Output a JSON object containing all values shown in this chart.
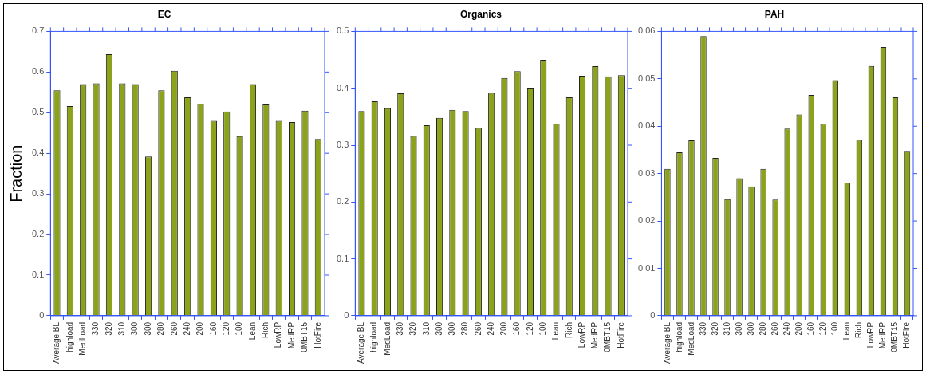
{
  "chart_data": [
    {
      "type": "bar",
      "title": "EC",
      "ylabel": "Fraction",
      "categories": [
        "Average BL",
        "highload",
        "MedLoad",
        "330",
        "320",
        "310",
        "300",
        "300",
        "280",
        "260",
        "240",
        "200",
        "160",
        "120",
        "100",
        "Lean",
        "Rich",
        "LowRP",
        "MedRP",
        "0MBT15",
        "HotFire"
      ],
      "values": [
        0.555,
        0.516,
        0.57,
        0.572,
        0.644,
        0.572,
        0.57,
        0.392,
        0.555,
        0.603,
        0.538,
        0.522,
        0.48,
        0.503,
        0.442,
        0.57,
        0.52,
        0.48,
        0.477,
        0.505,
        0.435
      ],
      "color": "#8aa31b",
      "ylim": [
        0,
        0.7
      ],
      "yticks": [
        0,
        0.1,
        0.2,
        0.3,
        0.4,
        0.5,
        0.6,
        0.7
      ],
      "grid": false
    },
    {
      "type": "bar",
      "title": "Organics",
      "categories": [
        "Average BL",
        "highload",
        "MedLoad",
        "330",
        "320",
        "310",
        "300",
        "300",
        "280",
        "260",
        "240",
        "200",
        "160",
        "120",
        "100",
        "Lean",
        "Rich",
        "LowRP",
        "MedRP",
        "0MBT15",
        "HotFire"
      ],
      "values": [
        0.36,
        0.377,
        0.365,
        0.391,
        0.316,
        0.335,
        0.348,
        0.362,
        0.36,
        0.33,
        0.392,
        0.418,
        0.43,
        0.401,
        0.45,
        0.338,
        0.384,
        0.422,
        0.439,
        0.421,
        0.423
      ],
      "color": "#8aa31b",
      "ylim": [
        0,
        0.5
      ],
      "yticks": [
        0,
        0.1,
        0.2,
        0.3,
        0.4,
        0.5
      ],
      "grid": false
    },
    {
      "type": "bar",
      "title": "PAH",
      "categories": [
        "Average BL",
        "highload",
        "MedLoad",
        "330",
        "320",
        "310",
        "300",
        "300",
        "280",
        "260",
        "240",
        "200",
        "160",
        "120",
        "100",
        "Lean",
        "Rich",
        "LowRP",
        "MedRP",
        "0MBT15",
        "HotFire"
      ],
      "values": [
        0.031,
        0.0345,
        0.037,
        0.059,
        0.0333,
        0.0246,
        0.029,
        0.0273,
        0.031,
        0.0245,
        0.0395,
        0.0425,
        0.0466,
        0.0405,
        0.0497,
        0.0281,
        0.0371,
        0.0527,
        0.0567,
        0.0461,
        0.0348
      ],
      "color": "#8aa31b",
      "ylim": [
        0,
        0.06
      ],
      "yticks": [
        0,
        0.01,
        0.02,
        0.03,
        0.04,
        0.05,
        0.06
      ],
      "grid": false
    }
  ]
}
